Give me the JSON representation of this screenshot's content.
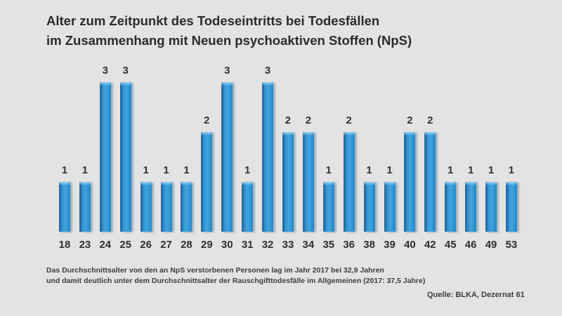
{
  "title": {
    "line1": "Alter zum Zeitpunkt des Todeseintritts bei Todesfällen",
    "line2": "im Zusammenhang mit Neuen psychoaktiven Stoffen (NpS)"
  },
  "chart_data": {
    "type": "bar",
    "title": "Alter zum Zeitpunkt des Todeseintritts bei Todesfällen im Zusammenhang mit Neuen psychoaktiven Stoffen (NpS)",
    "categories": [
      "18",
      "23",
      "24",
      "25",
      "26",
      "27",
      "28",
      "29",
      "30",
      "31",
      "32",
      "33",
      "34",
      "35",
      "36",
      "38",
      "39",
      "40",
      "42",
      "45",
      "46",
      "49",
      "53"
    ],
    "values": [
      1,
      1,
      3,
      3,
      1,
      1,
      1,
      2,
      3,
      1,
      3,
      2,
      2,
      1,
      2,
      1,
      1,
      2,
      2,
      1,
      1,
      1,
      1
    ],
    "xlabel": "",
    "ylabel": "",
    "ylim": [
      0,
      3
    ],
    "grid": false,
    "legend": false,
    "data_labels": true,
    "bar_color": "#2d93d3",
    "bar_edge_color": "#1b6fad",
    "background_color": "#e3e3e3",
    "label_color": "#2e2e2e"
  },
  "footnote": {
    "line1": "Das Durchschnittsalter von den an NpS verstorbenen Personen lag im Jahr 2017 bei 32,9 Jahren",
    "line2": "und damit deutlich unter dem Durchschnittsalter der Rauschgifttodesfälle im Allgemeinen (2017: 37,5 Jahre)"
  },
  "source": "Quelle: BLKA, Dezernat 61"
}
